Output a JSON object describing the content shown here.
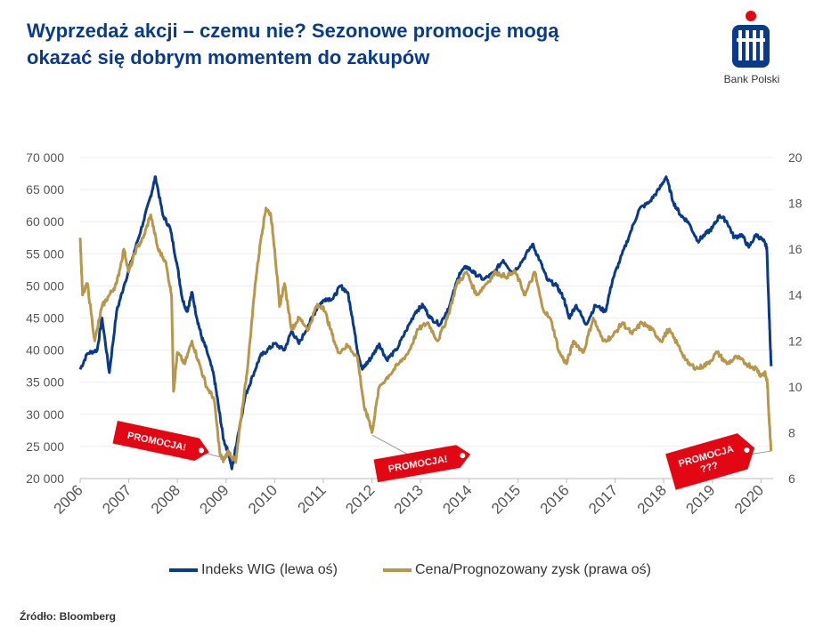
{
  "header": {
    "title_line1": "Wyprzedaż akcji – czemu nie? Sezonowe promocje mogą",
    "title_line2": "okazać się dobrym momentem do zakupów"
  },
  "brand": {
    "name": "Bank Polski",
    "logo_icon": "pko-logo-icon",
    "primary_color": "#0a3a8c",
    "accent_color": "#e30613"
  },
  "chart_data": {
    "type": "line",
    "title": "",
    "xlabel": "",
    "ylabel_left": "",
    "ylabel_right": "",
    "x_range": [
      2006,
      2020.25
    ],
    "x_ticks": [
      "2006",
      "2007",
      "2008",
      "2009",
      "2010",
      "2011",
      "2012",
      "2013",
      "2014",
      "2015",
      "2016",
      "2017",
      "2018",
      "2019",
      "2020"
    ],
    "y_left_range": [
      20000,
      70000
    ],
    "y_left_ticks": [
      "20 000",
      "25 000",
      "30 000",
      "35 000",
      "40 000",
      "45 000",
      "50 000",
      "55 000",
      "60 000",
      "65 000",
      "70 000"
    ],
    "y_right_range": [
      6,
      20
    ],
    "y_right_ticks": [
      "6",
      "8",
      "10",
      "12",
      "14",
      "16",
      "18",
      "20"
    ],
    "series": [
      {
        "name": "Indeks WIG (lewa oś)",
        "axis": "left",
        "color": "#0a3a8c",
        "points": [
          [
            2006.0,
            37000
          ],
          [
            2006.15,
            39500
          ],
          [
            2006.35,
            40000
          ],
          [
            2006.45,
            45000
          ],
          [
            2006.6,
            36500
          ],
          [
            2006.75,
            46000
          ],
          [
            2006.9,
            50000
          ],
          [
            2007.1,
            55000
          ],
          [
            2007.3,
            60000
          ],
          [
            2007.45,
            64000
          ],
          [
            2007.55,
            67000
          ],
          [
            2007.7,
            61000
          ],
          [
            2007.85,
            59000
          ],
          [
            2008.0,
            53000
          ],
          [
            2008.1,
            48000
          ],
          [
            2008.2,
            46000
          ],
          [
            2008.3,
            49000
          ],
          [
            2008.4,
            45000
          ],
          [
            2008.5,
            42000
          ],
          [
            2008.6,
            40000
          ],
          [
            2008.75,
            36000
          ],
          [
            2008.85,
            31000
          ],
          [
            2008.95,
            26000
          ],
          [
            2009.05,
            24000
          ],
          [
            2009.12,
            21500
          ],
          [
            2009.25,
            27000
          ],
          [
            2009.4,
            33000
          ],
          [
            2009.55,
            36000
          ],
          [
            2009.7,
            39000
          ],
          [
            2009.85,
            40000
          ],
          [
            2010.0,
            41000
          ],
          [
            2010.2,
            40000
          ],
          [
            2010.35,
            43000
          ],
          [
            2010.5,
            41000
          ],
          [
            2010.7,
            44000
          ],
          [
            2010.9,
            47000
          ],
          [
            2011.05,
            48000
          ],
          [
            2011.2,
            48000
          ],
          [
            2011.35,
            50000
          ],
          [
            2011.5,
            49000
          ],
          [
            2011.6,
            45000
          ],
          [
            2011.7,
            40000
          ],
          [
            2011.8,
            37000
          ],
          [
            2011.9,
            38000
          ],
          [
            2012.0,
            39000
          ],
          [
            2012.15,
            41000
          ],
          [
            2012.3,
            38500
          ],
          [
            2012.5,
            40000
          ],
          [
            2012.7,
            43000
          ],
          [
            2012.9,
            46000
          ],
          [
            2013.05,
            47000
          ],
          [
            2013.2,
            45000
          ],
          [
            2013.4,
            44000
          ],
          [
            2013.6,
            47000
          ],
          [
            2013.8,
            52000
          ],
          [
            2013.95,
            53000
          ],
          [
            2014.1,
            52000
          ],
          [
            2014.3,
            51000
          ],
          [
            2014.5,
            52000
          ],
          [
            2014.7,
            54000
          ],
          [
            2014.9,
            52000
          ],
          [
            2015.1,
            54000
          ],
          [
            2015.3,
            56500
          ],
          [
            2015.45,
            54000
          ],
          [
            2015.6,
            51000
          ],
          [
            2015.8,
            50000
          ],
          [
            2015.95,
            48000
          ],
          [
            2016.05,
            45000
          ],
          [
            2016.2,
            47000
          ],
          [
            2016.4,
            44000
          ],
          [
            2016.6,
            47000
          ],
          [
            2016.8,
            46000
          ],
          [
            2016.95,
            51000
          ],
          [
            2017.1,
            54000
          ],
          [
            2017.3,
            58000
          ],
          [
            2017.5,
            62000
          ],
          [
            2017.7,
            63000
          ],
          [
            2017.9,
            65000
          ],
          [
            2018.05,
            67000
          ],
          [
            2018.2,
            63000
          ],
          [
            2018.35,
            61000
          ],
          [
            2018.5,
            60000
          ],
          [
            2018.7,
            57000
          ],
          [
            2018.85,
            58000
          ],
          [
            2019.0,
            59000
          ],
          [
            2019.15,
            61000
          ],
          [
            2019.3,
            60000
          ],
          [
            2019.45,
            57500
          ],
          [
            2019.6,
            58000
          ],
          [
            2019.75,
            56000
          ],
          [
            2019.9,
            58000
          ],
          [
            2020.05,
            57000
          ],
          [
            2020.12,
            56000
          ],
          [
            2020.17,
            45000
          ],
          [
            2020.21,
            37500
          ]
        ]
      },
      {
        "name": "Cena/Prognozowany zysk (prawa oś)",
        "axis": "right",
        "color": "#b8964a",
        "points": [
          [
            2006.0,
            16.5
          ],
          [
            2006.05,
            14.0
          ],
          [
            2006.15,
            14.5
          ],
          [
            2006.3,
            12.0
          ],
          [
            2006.45,
            13.5
          ],
          [
            2006.6,
            14.0
          ],
          [
            2006.75,
            14.5
          ],
          [
            2006.9,
            16.0
          ],
          [
            2007.0,
            15.0
          ],
          [
            2007.15,
            16.0
          ],
          [
            2007.3,
            16.5
          ],
          [
            2007.45,
            17.5
          ],
          [
            2007.6,
            16.0
          ],
          [
            2007.75,
            15.5
          ],
          [
            2007.88,
            14.0
          ],
          [
            2007.92,
            9.8
          ],
          [
            2008.0,
            11.5
          ],
          [
            2008.15,
            11.0
          ],
          [
            2008.3,
            12.0
          ],
          [
            2008.45,
            11.0
          ],
          [
            2008.6,
            10.0
          ],
          [
            2008.75,
            9.5
          ],
          [
            2008.88,
            7.0
          ],
          [
            2008.95,
            6.8
          ],
          [
            2009.05,
            7.2
          ],
          [
            2009.2,
            6.7
          ],
          [
            2009.3,
            8.5
          ],
          [
            2009.45,
            11.0
          ],
          [
            2009.6,
            14.5
          ],
          [
            2009.72,
            16.5
          ],
          [
            2009.82,
            17.8
          ],
          [
            2009.92,
            17.5
          ],
          [
            2010.0,
            16.0
          ],
          [
            2010.1,
            13.5
          ],
          [
            2010.2,
            14.5
          ],
          [
            2010.35,
            12.5
          ],
          [
            2010.5,
            13.0
          ],
          [
            2010.7,
            12.5
          ],
          [
            2010.85,
            13.5
          ],
          [
            2011.0,
            13.5
          ],
          [
            2011.15,
            12.5
          ],
          [
            2011.3,
            11.5
          ],
          [
            2011.5,
            11.8
          ],
          [
            2011.7,
            11.3
          ],
          [
            2011.85,
            9.0
          ],
          [
            2011.95,
            8.5
          ],
          [
            2012.0,
            8.0
          ],
          [
            2012.15,
            10.0
          ],
          [
            2012.35,
            10.5
          ],
          [
            2012.55,
            11.0
          ],
          [
            2012.75,
            11.5
          ],
          [
            2012.95,
            12.5
          ],
          [
            2013.15,
            12.8
          ],
          [
            2013.35,
            12.0
          ],
          [
            2013.55,
            13.0
          ],
          [
            2013.75,
            14.5
          ],
          [
            2013.95,
            15.0
          ],
          [
            2014.15,
            14.0
          ],
          [
            2014.35,
            14.5
          ],
          [
            2014.55,
            15.0
          ],
          [
            2014.75,
            14.8
          ],
          [
            2014.95,
            15.0
          ],
          [
            2015.15,
            14.0
          ],
          [
            2015.35,
            15.0
          ],
          [
            2015.5,
            13.5
          ],
          [
            2015.7,
            12.8
          ],
          [
            2015.85,
            11.5
          ],
          [
            2016.0,
            11.0
          ],
          [
            2016.15,
            12.0
          ],
          [
            2016.35,
            11.5
          ],
          [
            2016.55,
            13.0
          ],
          [
            2016.75,
            12.0
          ],
          [
            2016.95,
            12.2
          ],
          [
            2017.15,
            12.8
          ],
          [
            2017.35,
            12.3
          ],
          [
            2017.55,
            12.8
          ],
          [
            2017.75,
            12.5
          ],
          [
            2017.95,
            12.0
          ],
          [
            2018.1,
            12.5
          ],
          [
            2018.3,
            11.8
          ],
          [
            2018.5,
            11.0
          ],
          [
            2018.7,
            10.8
          ],
          [
            2018.9,
            11.0
          ],
          [
            2019.1,
            11.5
          ],
          [
            2019.3,
            11.0
          ],
          [
            2019.5,
            11.3
          ],
          [
            2019.7,
            11.0
          ],
          [
            2019.9,
            10.8
          ],
          [
            2020.0,
            10.5
          ],
          [
            2020.08,
            10.6
          ],
          [
            2020.13,
            10.2
          ],
          [
            2020.17,
            8.5
          ],
          [
            2020.21,
            7.2
          ]
        ]
      }
    ],
    "annotations": [
      {
        "text": "PROMOCJA!",
        "at": [
          2008.95,
          6.9
        ]
      },
      {
        "text": "PROMOCJA!",
        "at": [
          2012.0,
          7.9
        ]
      },
      {
        "text_line1": "PROMOCJA",
        "text_line2": "???",
        "at": [
          2020.21,
          7.2
        ]
      }
    ]
  },
  "legend": {
    "wig_label": "Indeks WIG (lewa oś)",
    "pe_label": "Cena/Prognozowany zysk (prawa oś)"
  },
  "source": "Źródło: Bloomberg"
}
